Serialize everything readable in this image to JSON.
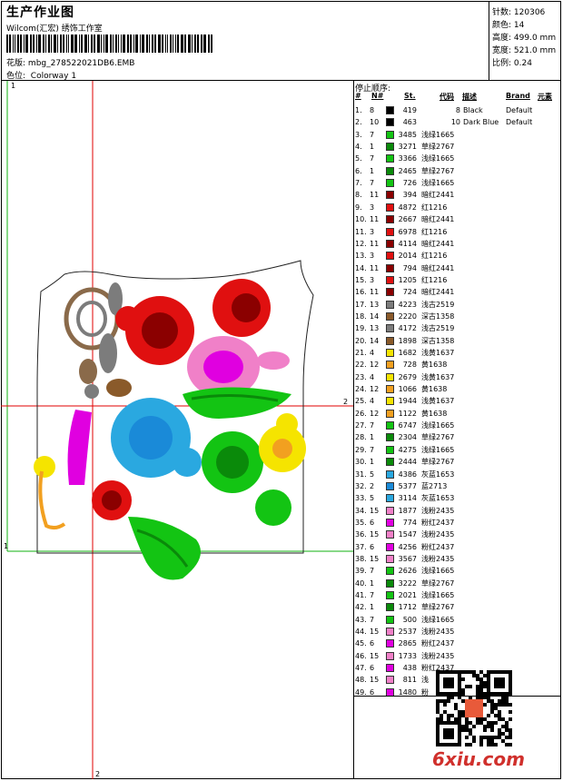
{
  "header": {
    "title": "生产作业图",
    "company": "Wilcom(汇宏) 绣饰工作室",
    "design_file_label": "花版:",
    "design_file": "mbg_278522021DB6.EMB",
    "colorway_label": "色位:",
    "colorway": "Colorway 1"
  },
  "info": {
    "stitches_label": "针数:",
    "stitches": "120306",
    "colors_label": "颜色:",
    "colors": "14",
    "height_label": "高度:",
    "height": "499.0 mm",
    "width_label": "宽度:",
    "width": "521.0 mm",
    "scale_label": "比例:",
    "scale": "0.24"
  },
  "design": {
    "marker_1_top": "1",
    "marker_2_right": "2",
    "marker_2_bottom": "2",
    "marker_1_left": "1"
  },
  "sequence": {
    "title": "停止顺序:",
    "headers": {
      "seq": "#",
      "needle": "N#",
      "stitches": "St.",
      "code": "代码",
      "desc": "描述",
      "brand": "Brand",
      "element": "元素"
    },
    "rows": [
      {
        "n": "1.",
        "needle": "8",
        "st": "419",
        "code": "8",
        "desc": "Black",
        "brand": "Default",
        "color": "#000000"
      },
      {
        "n": "2.",
        "needle": "10",
        "st": "463",
        "code": "10",
        "desc": "Dark Blue",
        "brand": "Default",
        "color": "#000000"
      },
      {
        "n": "3.",
        "needle": "7",
        "st": "3485",
        "code": "",
        "desc": "浅绿1665",
        "brand": "",
        "color": "#13c413"
      },
      {
        "n": "4.",
        "needle": "1",
        "st": "3271",
        "code": "",
        "desc": "草绿2767",
        "brand": "",
        "color": "#0a8a0a"
      },
      {
        "n": "5.",
        "needle": "7",
        "st": "3366",
        "code": "",
        "desc": "浅绿1665",
        "brand": "",
        "color": "#13c413"
      },
      {
        "n": "6.",
        "needle": "1",
        "st": "2465",
        "code": "",
        "desc": "草绿2767",
        "brand": "",
        "color": "#0a8a0a"
      },
      {
        "n": "7.",
        "needle": "7",
        "st": "726",
        "code": "",
        "desc": "浅绿1665",
        "brand": "",
        "color": "#13c413"
      },
      {
        "n": "8.",
        "needle": "11",
        "st": "394",
        "code": "",
        "desc": "暗红2441",
        "brand": "",
        "color": "#8b0000"
      },
      {
        "n": "9.",
        "needle": "3",
        "st": "4872",
        "code": "",
        "desc": "红1216",
        "brand": "",
        "color": "#e01010"
      },
      {
        "n": "10.",
        "needle": "11",
        "st": "2667",
        "code": "",
        "desc": "暗红2441",
        "brand": "",
        "color": "#8b0000"
      },
      {
        "n": "11.",
        "needle": "3",
        "st": "6978",
        "code": "",
        "desc": "红1216",
        "brand": "",
        "color": "#e01010"
      },
      {
        "n": "12.",
        "needle": "11",
        "st": "4114",
        "code": "",
        "desc": "暗红2441",
        "brand": "",
        "color": "#8b0000"
      },
      {
        "n": "13.",
        "needle": "3",
        "st": "2014",
        "code": "",
        "desc": "红1216",
        "brand": "",
        "color": "#e01010"
      },
      {
        "n": "14.",
        "needle": "11",
        "st": "794",
        "code": "",
        "desc": "暗红2441",
        "brand": "",
        "color": "#8b0000"
      },
      {
        "n": "15.",
        "needle": "3",
        "st": "1205",
        "code": "",
        "desc": "红1216",
        "brand": "",
        "color": "#e01010"
      },
      {
        "n": "16.",
        "needle": "11",
        "st": "724",
        "code": "",
        "desc": "暗红2441",
        "brand": "",
        "color": "#8b0000"
      },
      {
        "n": "17.",
        "needle": "13",
        "st": "4223",
        "code": "",
        "desc": "浅古2519",
        "brand": "",
        "color": "#7c7c7c"
      },
      {
        "n": "18.",
        "needle": "14",
        "st": "2220",
        "code": "",
        "desc": "深古1358",
        "brand": "",
        "color": "#8a5a2a"
      },
      {
        "n": "19.",
        "needle": "13",
        "st": "4172",
        "code": "",
        "desc": "浅古2519",
        "brand": "",
        "color": "#7c7c7c"
      },
      {
        "n": "20.",
        "needle": "14",
        "st": "1898",
        "code": "",
        "desc": "深古1358",
        "brand": "",
        "color": "#8a5a2a"
      },
      {
        "n": "21.",
        "needle": "4",
        "st": "1682",
        "code": "",
        "desc": "浅黄1637",
        "brand": "",
        "color": "#f5e400"
      },
      {
        "n": "22.",
        "needle": "12",
        "st": "728",
        "code": "",
        "desc": "黄1638",
        "brand": "",
        "color": "#f2a020"
      },
      {
        "n": "23.",
        "needle": "4",
        "st": "2679",
        "code": "",
        "desc": "浅黄1637",
        "brand": "",
        "color": "#f5e400"
      },
      {
        "n": "24.",
        "needle": "12",
        "st": "1066",
        "code": "",
        "desc": "黄1638",
        "brand": "",
        "color": "#f2a020"
      },
      {
        "n": "25.",
        "needle": "4",
        "st": "1944",
        "code": "",
        "desc": "浅黄1637",
        "brand": "",
        "color": "#f5e400"
      },
      {
        "n": "26.",
        "needle": "12",
        "st": "1122",
        "code": "",
        "desc": "黄1638",
        "brand": "",
        "color": "#f2a020"
      },
      {
        "n": "27.",
        "needle": "7",
        "st": "6747",
        "code": "",
        "desc": "浅绿1665",
        "brand": "",
        "color": "#13c413"
      },
      {
        "n": "28.",
        "needle": "1",
        "st": "2304",
        "code": "",
        "desc": "草绿2767",
        "brand": "",
        "color": "#0a8a0a"
      },
      {
        "n": "29.",
        "needle": "7",
        "st": "4275",
        "code": "",
        "desc": "浅绿1665",
        "brand": "",
        "color": "#13c413"
      },
      {
        "n": "30.",
        "needle": "1",
        "st": "2444",
        "code": "",
        "desc": "草绿2767",
        "brand": "",
        "color": "#0a8a0a"
      },
      {
        "n": "31.",
        "needle": "5",
        "st": "4386",
        "code": "",
        "desc": "灰蓝1653",
        "brand": "",
        "color": "#2aa8e0"
      },
      {
        "n": "32.",
        "needle": "2",
        "st": "5377",
        "code": "",
        "desc": "蓝2713",
        "brand": "",
        "color": "#1a8ad8"
      },
      {
        "n": "33.",
        "needle": "5",
        "st": "3114",
        "code": "",
        "desc": "灰蓝1653",
        "brand": "",
        "color": "#2aa8e0"
      },
      {
        "n": "34.",
        "needle": "15",
        "st": "1877",
        "code": "",
        "desc": "浅粉2435",
        "brand": "",
        "color": "#f080c8"
      },
      {
        "n": "35.",
        "needle": "6",
        "st": "774",
        "code": "",
        "desc": "粉红2437",
        "brand": "",
        "color": "#e000e0"
      },
      {
        "n": "36.",
        "needle": "15",
        "st": "1547",
        "code": "",
        "desc": "浅粉2435",
        "brand": "",
        "color": "#f080c8"
      },
      {
        "n": "37.",
        "needle": "6",
        "st": "4256",
        "code": "",
        "desc": "粉红2437",
        "brand": "",
        "color": "#e000e0"
      },
      {
        "n": "38.",
        "needle": "15",
        "st": "3567",
        "code": "",
        "desc": "浅粉2435",
        "brand": "",
        "color": "#f080c8"
      },
      {
        "n": "39.",
        "needle": "7",
        "st": "2626",
        "code": "",
        "desc": "浅绿1665",
        "brand": "",
        "color": "#13c413"
      },
      {
        "n": "40.",
        "needle": "1",
        "st": "3222",
        "code": "",
        "desc": "草绿2767",
        "brand": "",
        "color": "#0a8a0a"
      },
      {
        "n": "41.",
        "needle": "7",
        "st": "2021",
        "code": "",
        "desc": "浅绿1665",
        "brand": "",
        "color": "#13c413"
      },
      {
        "n": "42.",
        "needle": "1",
        "st": "1712",
        "code": "",
        "desc": "草绿2767",
        "brand": "",
        "color": "#0a8a0a"
      },
      {
        "n": "43.",
        "needle": "7",
        "st": "500",
        "code": "",
        "desc": "浅绿1665",
        "brand": "",
        "color": "#13c413"
      },
      {
        "n": "44.",
        "needle": "15",
        "st": "2537",
        "code": "",
        "desc": "浅粉2435",
        "brand": "",
        "color": "#f080c8"
      },
      {
        "n": "45.",
        "needle": "6",
        "st": "2865",
        "code": "",
        "desc": "粉红2437",
        "brand": "",
        "color": "#e000e0"
      },
      {
        "n": "46.",
        "needle": "15",
        "st": "1733",
        "code": "",
        "desc": "浅粉2435",
        "brand": "",
        "color": "#f080c8"
      },
      {
        "n": "47.",
        "needle": "6",
        "st": "438",
        "code": "",
        "desc": "粉红2437",
        "brand": "",
        "color": "#e000e0"
      },
      {
        "n": "48.",
        "needle": "15",
        "st": "811",
        "code": "",
        "desc": "浅",
        "brand": "",
        "color": "#f080c8"
      },
      {
        "n": "49.",
        "needle": "6",
        "st": "1480",
        "code": "",
        "desc": "粉",
        "brand": "",
        "color": "#e000e0"
      }
    ]
  },
  "watermark": "6xiu.com"
}
